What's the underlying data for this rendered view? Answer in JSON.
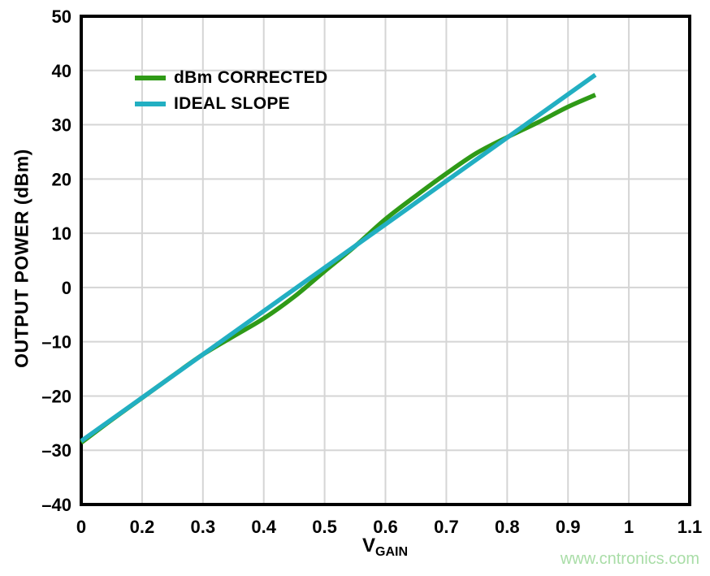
{
  "watermark": {
    "text": "www.cntronics.com",
    "color": "#a9dda7"
  },
  "colors": {
    "corrected_line": "#2f9a17",
    "ideal_line": "#22afc2",
    "gridline": "#d5d5d5",
    "plot_border": "#000000",
    "text": "#000000",
    "background": "#ffffff"
  },
  "chart_data": {
    "type": "line",
    "title": "",
    "xlabel": "V_GAIN",
    "xlabel_main": "V",
    "xlabel_sub": "GAIN",
    "ylabel": "OUTPUT POWER (dBm)",
    "x_tick_labels": [
      "0",
      "0.2",
      "0.3",
      "0.4",
      "0.5",
      "0.6",
      "0.7",
      "0.8",
      "0.9",
      "1",
      "1.1"
    ],
    "y_tick_labels": [
      "50",
      "40",
      "30",
      "20",
      "10",
      "0",
      "–10",
      "–20",
      "–30",
      "–40"
    ],
    "y_tick_values": [
      50,
      40,
      30,
      20,
      10,
      0,
      -10,
      -20,
      -30,
      -40
    ],
    "ylim": [
      -40,
      50
    ],
    "grid": true,
    "legend_position": "upper-left-inside",
    "x_unit_note": "x coordinates below are tick-index positions 0-10 matching x_tick_labels",
    "series": [
      {
        "name": "dBm CORRECTED",
        "color": "#2f9a17",
        "points": [
          [
            0,
            -28.6
          ],
          [
            0.5,
            -24.4
          ],
          [
            1,
            -20.35
          ],
          [
            1.5,
            -16.3
          ],
          [
            2,
            -12.35
          ],
          [
            2.5,
            -9.0
          ],
          [
            3,
            -5.7
          ],
          [
            3.5,
            -1.7
          ],
          [
            4,
            3.0
          ],
          [
            4.5,
            7.6
          ],
          [
            5,
            12.6
          ],
          [
            5.5,
            16.9
          ],
          [
            6,
            21.0
          ],
          [
            6.5,
            24.8
          ],
          [
            7,
            27.7
          ],
          [
            7.5,
            30.4
          ],
          [
            8,
            33.3
          ],
          [
            8.45,
            35.5
          ]
        ]
      },
      {
        "name": "IDEAL SLOPE",
        "color": "#22afc2",
        "points": [
          [
            0,
            -28.3
          ],
          [
            8.45,
            39.2
          ]
        ]
      }
    ]
  }
}
